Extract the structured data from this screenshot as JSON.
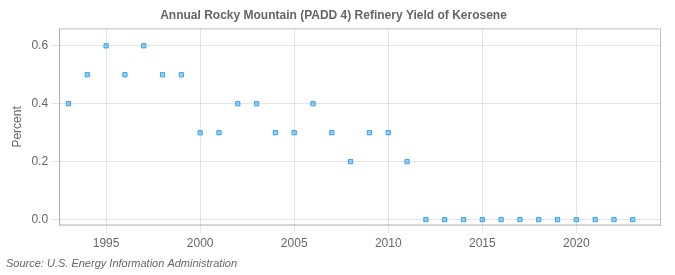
{
  "chart_data": {
    "type": "scatter",
    "title": "Annual Rocky Mountain (PADD 4) Refinery Yield of Kerosene",
    "ylabel": "Percent",
    "annotations": [
      "Source: U.S. Energy Information Administration"
    ],
    "x": [
      1993,
      1994,
      1995,
      1996,
      1997,
      1998,
      1999,
      2000,
      2001,
      2002,
      2003,
      2004,
      2005,
      2006,
      2007,
      2008,
      2009,
      2010,
      2011,
      2012,
      2013,
      2014,
      2015,
      2016,
      2017,
      2018,
      2019,
      2020,
      2021,
      2022,
      2023
    ],
    "values": [
      0.4,
      0.5,
      0.6,
      0.5,
      0.6,
      0.5,
      0.5,
      0.3,
      0.3,
      0.4,
      0.4,
      0.3,
      0.3,
      0.4,
      0.3,
      0.2,
      0.3,
      0.3,
      0.2,
      0.0,
      0.0,
      0.0,
      0.0,
      0.0,
      0.0,
      0.0,
      0.0,
      0.0,
      0.0,
      0.0,
      0.0
    ],
    "marker": "square",
    "xlim": [
      1992.5,
      2024.5
    ],
    "ylim": [
      -0.02,
      0.66
    ],
    "xticks": [
      1995,
      2000,
      2005,
      2010,
      2015,
      2020
    ],
    "yticks": [
      {
        "value": 0,
        "label": "0.0"
      },
      0.2,
      0.4,
      0.6
    ],
    "grid": true
  }
}
